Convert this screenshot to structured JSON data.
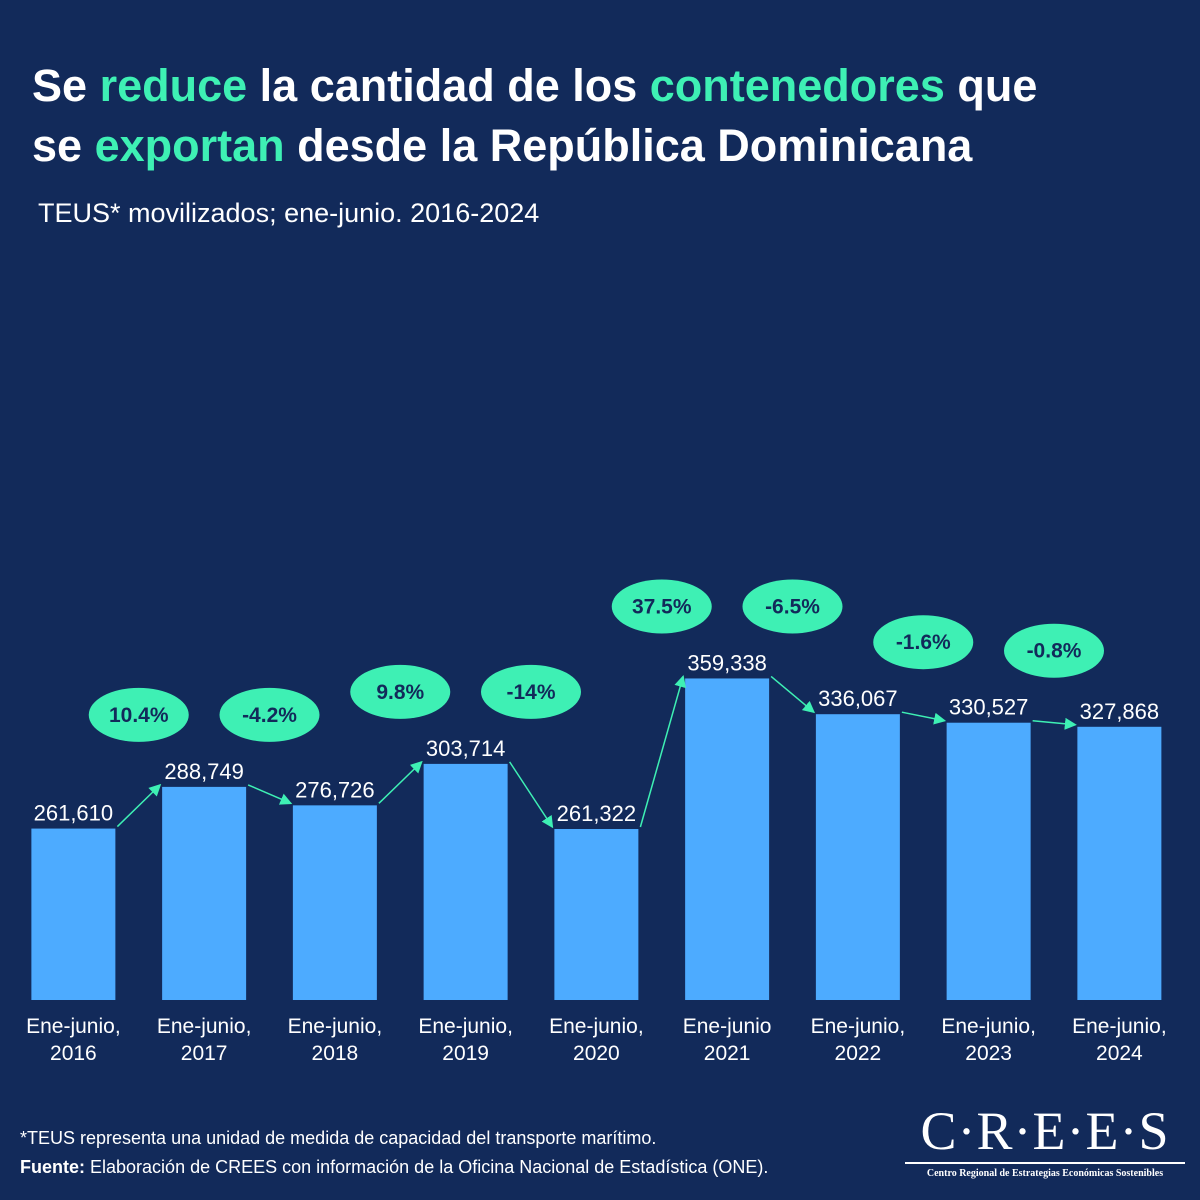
{
  "chart_data": {
    "type": "bar",
    "title": [
      [
        {
          "text": "Se",
          "highlight": false
        },
        {
          "text": "reduce",
          "highlight": true
        },
        {
          "text": "la cantidad de los",
          "highlight": false
        },
        {
          "text": "contenedores",
          "highlight": true
        },
        {
          "text": "que",
          "highlight": false
        }
      ],
      [
        {
          "text": "se",
          "highlight": false
        },
        {
          "text": "exportan",
          "highlight": true
        },
        {
          "text": "desde la República Dominicana",
          "highlight": false
        }
      ]
    ],
    "highlight_color": "#3ef0b4",
    "subtitle": "TEUS* movilizados; ene-junio. 2016-2024",
    "categories": [
      "Ene-junio, 2016",
      "Ene-junio, 2017",
      "Ene-junio, 2018",
      "Ene-junio, 2019",
      "Ene-junio, 2020",
      "Ene-junio 2021",
      "Ene-junio, 2022",
      "Ene-junio, 2023",
      "Ene-junio, 2024"
    ],
    "values": [
      261610,
      288749,
      276726,
      303714,
      261322,
      359338,
      336067,
      330527,
      327868
    ],
    "value_labels": [
      "261,610",
      "288,749",
      "276,726",
      "303,714",
      "261,322",
      "359,338",
      "336,067",
      "330,527",
      "327,868"
    ],
    "color": "#4dabff",
    "ylim": [
      150000,
      400000
    ],
    "changes": {
      "values": [
        10.4,
        -4.2,
        9.8,
        -14,
        37.5,
        -6.5,
        -1.6,
        -0.8
      ],
      "value_labels": [
        "10.4%",
        "-4.2%",
        "9.8%",
        "-14%",
        "37.5%",
        "-6.5%",
        "-1.6%",
        "-0.8%"
      ],
      "color": "#3ef0b4"
    },
    "note": "*TEUS representa una unidad de medida de capacidad  del transporte marítimo.",
    "source_label": "Fuente:",
    "source": "Elaboración de CREES con información de la Oficina Nacional de Estadística (ONE).",
    "logo": "C·R·E·E·S",
    "logo_subtitle": "Centro Regional de Estrategias Económicas Sostenibles"
  }
}
